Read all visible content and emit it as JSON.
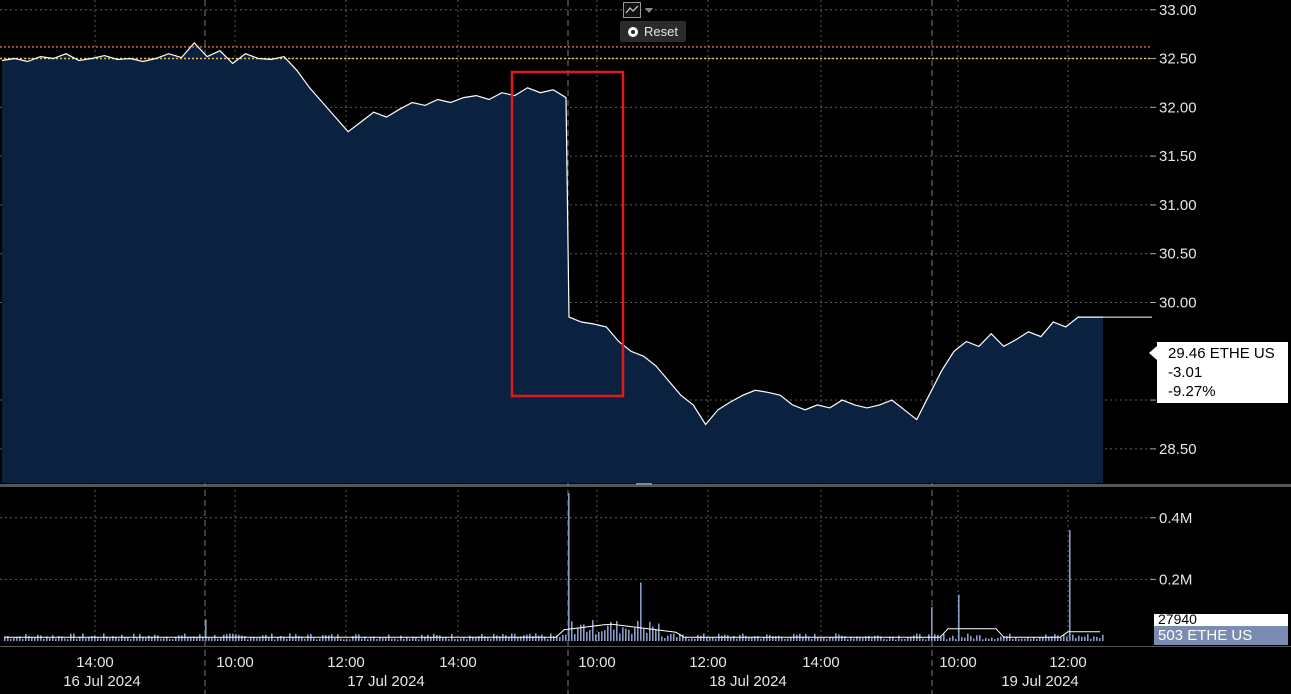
{
  "toolbar": {
    "chart_type_icon": "line-chart-icon",
    "reset_label": "Reset"
  },
  "price_box": {
    "price": "29.46 ETHE US",
    "change": "-3.01",
    "pct": "-9.27%"
  },
  "volume_box": {
    "label": "503 ETHE US",
    "average": "27940"
  },
  "colors": {
    "area_fill": "#0a2240",
    "price_line": "#ffffff",
    "ref_line": "#e2c23c",
    "upper_ref_line": "#c86b4a",
    "volume_bar": "#8b9bc7",
    "volume_avg": "#ffffff",
    "highlight_box": "#e0191e",
    "grid": "#5a5a5a"
  },
  "chart_data": [
    {
      "type": "area",
      "title": "",
      "y_axis_side": "right",
      "ylim": [
        28.15,
        33.1
      ],
      "y_ticks": [
        "33.00",
        "32.50",
        "32.00",
        "31.50",
        "31.00",
        "30.50",
        "30.00",
        "28.50"
      ],
      "x_tick_labels": [
        {
          "time": "14:00",
          "date": "16 Jul 2024"
        },
        {
          "time": "10:00",
          "date": ""
        },
        {
          "time": "12:00",
          "date": "17 Jul 2024"
        },
        {
          "time": "14:00",
          "date": ""
        },
        {
          "time": "10:00",
          "date": ""
        },
        {
          "time": "12:00",
          "date": "18 Jul 2024"
        },
        {
          "time": "14:00",
          "date": ""
        },
        {
          "time": "10:00",
          "date": ""
        },
        {
          "time": "12:00",
          "date": "19 Jul 2024"
        }
      ],
      "reference_lines": [
        {
          "value": 32.5,
          "style": "dotted",
          "color": "#e2c23c"
        },
        {
          "value": 32.62,
          "style": "dotted",
          "color": "#c86b4a"
        }
      ],
      "series": [
        {
          "values": [
            32.48,
            32.5,
            32.47,
            32.52,
            32.5,
            32.55,
            32.48,
            32.5,
            32.53,
            32.49,
            32.5,
            32.47,
            32.5,
            32.55,
            32.51,
            32.66,
            32.52,
            32.58,
            32.45,
            32.55,
            32.5,
            32.49,
            32.52,
            32.38,
            32.2,
            32.05,
            31.9,
            31.75,
            31.85,
            31.95,
            31.9,
            31.98,
            32.05,
            32.02,
            32.08,
            32.05,
            32.1,
            32.12,
            32.08,
            32.15,
            32.12,
            32.2,
            32.15,
            32.18,
            32.1,
            29.85,
            29.8,
            29.78,
            29.75,
            29.6,
            29.5,
            29.45,
            29.35,
            29.2,
            29.05,
            28.95,
            28.75,
            28.9,
            28.98,
            29.05,
            29.1,
            29.08,
            29.05,
            28.95,
            28.9,
            28.95,
            28.92,
            29.0,
            28.95,
            28.92,
            28.95,
            29.0,
            28.9,
            28.8,
            29.05,
            29.3,
            29.5,
            29.6,
            29.55,
            29.68,
            29.55,
            29.62,
            29.7,
            29.65,
            29.8,
            29.75,
            29.85,
            29.85,
            29.85
          ],
          "last": 29.46,
          "change": -3.01,
          "pct_change": -9.27
        }
      ],
      "annotations": [
        {
          "type": "highlight_rectangle",
          "x_range": [
            "17 Jul 2024 ~15:30",
            "18 Jul 2024 ~10:30"
          ],
          "y_range": [
            29.0,
            32.4
          ]
        }
      ]
    },
    {
      "type": "bar",
      "title": "",
      "y_axis_side": "right",
      "ylim": [
        0,
        0.5
      ],
      "y_ticks": [
        "0.4M",
        "0.2M"
      ],
      "average_value": 27940,
      "spikes": [
        {
          "time": "17 Jul 2024 ~16:00",
          "value_m": 0.48
        },
        {
          "time": "18 Jul 2024 ~10:30",
          "value_m": 0.19
        },
        {
          "time": "19 Jul 2024 ~12:00",
          "value_m": 0.36
        },
        {
          "time": "19 Jul 2024 ~09:30",
          "value_m": 0.15
        }
      ]
    }
  ]
}
